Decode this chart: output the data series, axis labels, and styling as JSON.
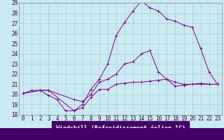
{
  "xlabel": "Windchill (Refroidissement éolien,°C)",
  "bg_color": "#c8eaf0",
  "grid_color": "#aaccd8",
  "line_color": "#880088",
  "xlim": [
    -0.5,
    23.5
  ],
  "ylim": [
    18,
    29
  ],
  "xticks": [
    0,
    1,
    2,
    3,
    4,
    5,
    6,
    7,
    8,
    9,
    10,
    11,
    12,
    13,
    14,
    15,
    16,
    17,
    18,
    19,
    20,
    21,
    22,
    23
  ],
  "yticks": [
    18,
    19,
    20,
    21,
    22,
    23,
    24,
    25,
    26,
    27,
    28,
    29
  ],
  "lines": [
    {
      "x": [
        0,
        1,
        2,
        3,
        4,
        5,
        6,
        7,
        8,
        9,
        10,
        11,
        12,
        13,
        14,
        15,
        16,
        17,
        18,
        19,
        20,
        21,
        22,
        23
      ],
      "y": [
        20.1,
        20.4,
        20.4,
        19.9,
        19.5,
        18.4,
        18.4,
        18.7,
        19.7,
        20.5,
        20.5,
        21.0,
        21.1,
        21.2,
        21.2,
        21.3,
        21.4,
        21.5,
        20.8,
        20.9,
        21.0,
        21.1,
        21.0,
        21.0
      ]
    },
    {
      "x": [
        0,
        2,
        3,
        6,
        7,
        8,
        9,
        10,
        11,
        12,
        13,
        14,
        15,
        16,
        17,
        18,
        19,
        20,
        21,
        22,
        23
      ],
      "y": [
        20.1,
        20.4,
        20.4,
        19.5,
        19.3,
        20.0,
        21.2,
        21.5,
        22.0,
        23.0,
        23.2,
        24.0,
        24.3,
        22.2,
        21.5,
        21.2,
        21.0,
        21.0,
        21.0,
        21.0,
        21.0
      ]
    },
    {
      "x": [
        0,
        2,
        3,
        6,
        7,
        8,
        9,
        10,
        11,
        12,
        13,
        14,
        15,
        16,
        17,
        18,
        19,
        20,
        21,
        22,
        23
      ],
      "y": [
        20.1,
        20.4,
        20.4,
        18.4,
        19.0,
        20.5,
        21.5,
        23.0,
        25.8,
        27.1,
        28.2,
        29.2,
        28.5,
        28.2,
        27.4,
        27.2,
        26.8,
        26.6,
        24.5,
        22.2,
        21.0
      ]
    }
  ]
}
